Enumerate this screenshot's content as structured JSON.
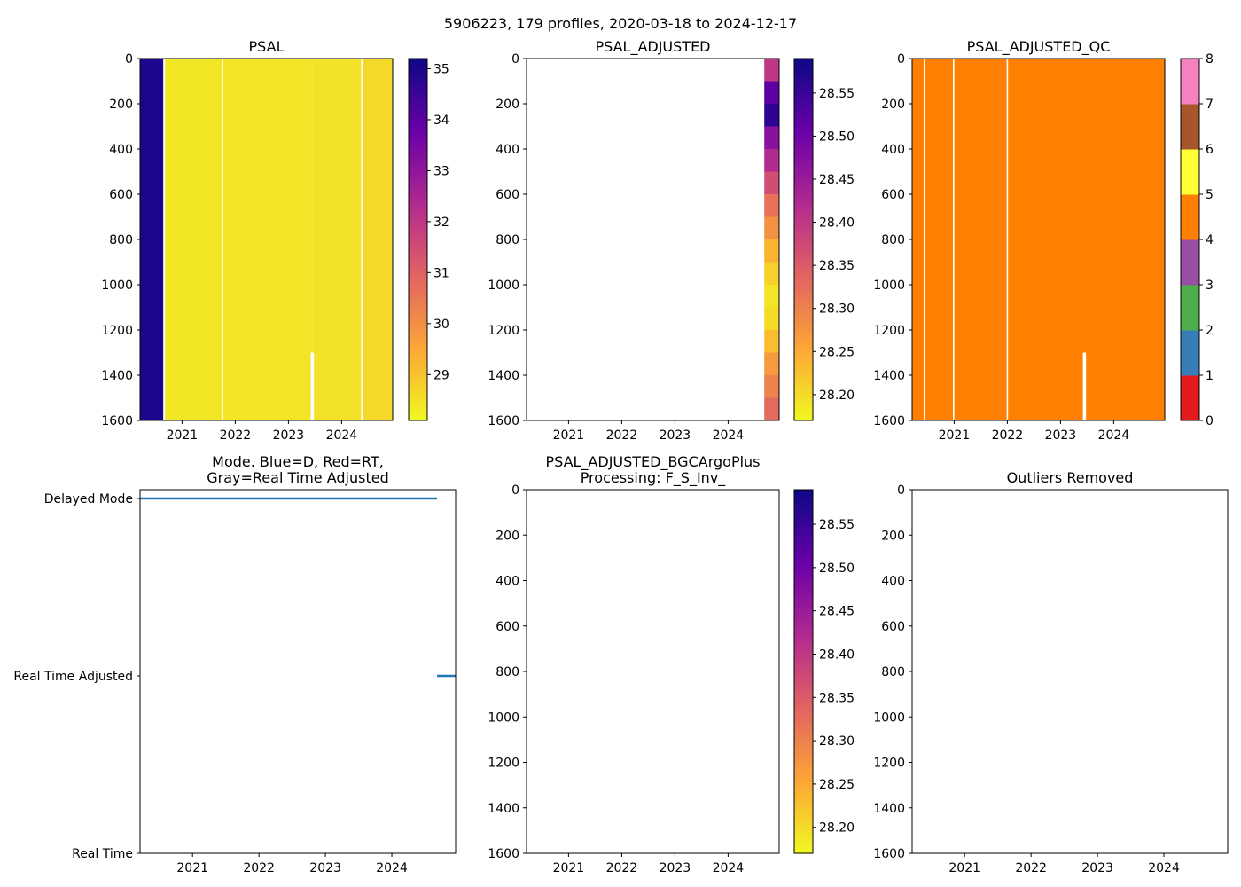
{
  "figure_title": "5906223, 179 profiles, 2020-03-18 to 2024-12-17",
  "colors": {
    "delayed_mode_line": "#1f77b4",
    "plasma_stops": [
      "#0d0887",
      "#6a00a8",
      "#b12a90",
      "#e16462",
      "#fca636",
      "#f0f921"
    ],
    "qc_colors": [
      "#e41a1c",
      "#377eb8",
      "#4daf4a",
      "#984ea3",
      "#ff7f00",
      "#ffff33",
      "#a65628",
      "#f781bf",
      "#999999"
    ]
  },
  "chart_data": [
    {
      "id": "psal",
      "type": "heatmap",
      "title": "PSAL",
      "xlim": [
        2020.21,
        2024.96
      ],
      "ylim": [
        1600,
        0
      ],
      "xticks": [
        "2021",
        "2022",
        "2023",
        "2024"
      ],
      "yticks": [
        "0",
        "200",
        "400",
        "600",
        "800",
        "1000",
        "1200",
        "1400",
        "1600"
      ],
      "colorbar": {
        "min": 28.1,
        "max": 35.2,
        "ticks": [
          "29",
          "30",
          "31",
          "32",
          "33",
          "34",
          "35"
        ],
        "colormap": "plasma_r"
      },
      "segments": [
        {
          "x0": 2020.21,
          "x1": 2020.65,
          "value": 35.0
        },
        {
          "x0": 2020.68,
          "x1": 2021.75,
          "value": 28.4
        },
        {
          "x0": 2021.77,
          "x1": 2023.45,
          "value": 28.45
        },
        {
          "x0": 2023.45,
          "x1": 2024.37,
          "value": 28.5
        },
        {
          "x0": 2024.39,
          "x1": 2024.96,
          "value": 28.65
        }
      ],
      "gaps": [
        2020.66,
        2021.76,
        2024.38
      ],
      "missing_notch": {
        "x0": 2023.42,
        "x1": 2023.48,
        "depth0": 1300,
        "depth1": 1600
      }
    },
    {
      "id": "psal_adjusted",
      "type": "heatmap",
      "title": "PSAL_ADJUSTED",
      "xlim": [
        2020.21,
        2024.96
      ],
      "ylim": [
        1600,
        0
      ],
      "xticks": [
        "2021",
        "2022",
        "2023",
        "2024"
      ],
      "yticks": [
        "0",
        "200",
        "400",
        "600",
        "800",
        "1000",
        "1200",
        "1400",
        "1600"
      ],
      "colorbar": {
        "min": 28.17,
        "max": 28.59,
        "ticks": [
          "28.20",
          "28.25",
          "28.30",
          "28.35",
          "28.40",
          "28.45",
          "28.50",
          "28.55"
        ],
        "colormap": "plasma_r"
      },
      "data_x_range": [
        2024.68,
        2024.96
      ],
      "depth_profile": [
        {
          "depth0": 0,
          "depth1": 100,
          "value": 28.4
        },
        {
          "depth0": 100,
          "depth1": 200,
          "value": 28.52
        },
        {
          "depth0": 200,
          "depth1": 300,
          "value": 28.56
        },
        {
          "depth0": 300,
          "depth1": 400,
          "value": 28.47
        },
        {
          "depth0": 400,
          "depth1": 500,
          "value": 28.42
        },
        {
          "depth0": 500,
          "depth1": 600,
          "value": 28.37
        },
        {
          "depth0": 600,
          "depth1": 700,
          "value": 28.32
        },
        {
          "depth0": 700,
          "depth1": 800,
          "value": 28.28
        },
        {
          "depth0": 800,
          "depth1": 900,
          "value": 28.24
        },
        {
          "depth0": 900,
          "depth1": 1000,
          "value": 28.21
        },
        {
          "depth0": 1000,
          "depth1": 1100,
          "value": 28.19
        },
        {
          "depth0": 1100,
          "depth1": 1200,
          "value": 28.2
        },
        {
          "depth0": 1200,
          "depth1": 1300,
          "value": 28.23
        },
        {
          "depth0": 1300,
          "depth1": 1400,
          "value": 28.27
        },
        {
          "depth0": 1400,
          "depth1": 1500,
          "value": 28.3
        },
        {
          "depth0": 1500,
          "depth1": 1600,
          "value": 28.33
        }
      ]
    },
    {
      "id": "psal_adjusted_qc",
      "type": "heatmap",
      "title": "PSAL_ADJUSTED_QC",
      "xlim": [
        2020.21,
        2024.96
      ],
      "ylim": [
        1600,
        0
      ],
      "xticks": [
        "2021",
        "2022",
        "2023",
        "2024"
      ],
      "yticks": [
        "0",
        "200",
        "400",
        "600",
        "800",
        "1000",
        "1200",
        "1400",
        "1600"
      ],
      "colorbar": {
        "min": 0,
        "max": 8,
        "ticks": [
          "0",
          "1",
          "2",
          "3",
          "4",
          "5",
          "6",
          "7",
          "8"
        ],
        "colormap": "qc"
      },
      "fill_value": 4,
      "gaps": [
        2020.44,
        2020.99,
        2022.0
      ],
      "missing_notch": {
        "x0": 2023.42,
        "x1": 2023.48,
        "depth0": 1300,
        "depth1": 1600
      }
    },
    {
      "id": "mode",
      "type": "line",
      "title": "Mode. Blue=D, Red=RT,\nGray=Real Time Adjusted",
      "xlim": [
        2020.21,
        2024.96
      ],
      "xticks": [
        "2021",
        "2022",
        "2023",
        "2024"
      ],
      "ylabels": [
        "Delayed Mode",
        "Real Time Adjusted",
        "Real Time"
      ],
      "series": [
        {
          "name": "Delayed Mode",
          "level": 2,
          "x0": 2020.21,
          "x1": 2024.68
        },
        {
          "name": "Real Time Adjusted",
          "level": 1,
          "x0": 2024.68,
          "x1": 2024.96
        }
      ]
    },
    {
      "id": "bgcargoplus",
      "type": "heatmap",
      "title": "PSAL_ADJUSTED_BGCArgoPlus\nProcessing: F_S_Inv_",
      "xlim": [
        2020.21,
        2024.96
      ],
      "ylim": [
        1600,
        0
      ],
      "xticks": [
        "2021",
        "2022",
        "2023",
        "2024"
      ],
      "yticks": [
        "0",
        "200",
        "400",
        "600",
        "800",
        "1000",
        "1200",
        "1400",
        "1600"
      ],
      "colorbar": {
        "min": 28.17,
        "max": 28.59,
        "ticks": [
          "28.20",
          "28.25",
          "28.30",
          "28.35",
          "28.40",
          "28.45",
          "28.50",
          "28.55"
        ],
        "colormap": "plasma_r"
      }
    },
    {
      "id": "outliers",
      "type": "heatmap",
      "title": "Outliers Removed",
      "xlim": [
        2020.21,
        2024.96
      ],
      "ylim": [
        1600,
        0
      ],
      "xticks": [
        "2021",
        "2022",
        "2023",
        "2024"
      ],
      "yticks": [
        "0",
        "200",
        "400",
        "600",
        "800",
        "1000",
        "1200",
        "1400",
        "1600"
      ]
    }
  ]
}
